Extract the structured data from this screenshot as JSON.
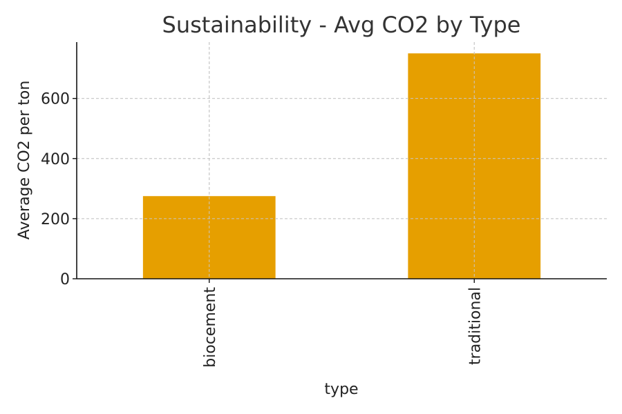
{
  "chart_data": {
    "type": "bar",
    "title": "Sustainability - Avg CO2 by Type",
    "xlabel": "type",
    "ylabel": "Average CO2 per ton",
    "categories": [
      "biocement",
      "traditional"
    ],
    "values": [
      275,
      750
    ],
    "ylim": [
      0,
      787.5
    ],
    "yticks": [
      0,
      200,
      400,
      600
    ],
    "grid": true,
    "bar_color": "#E69F00",
    "legend": "none"
  }
}
